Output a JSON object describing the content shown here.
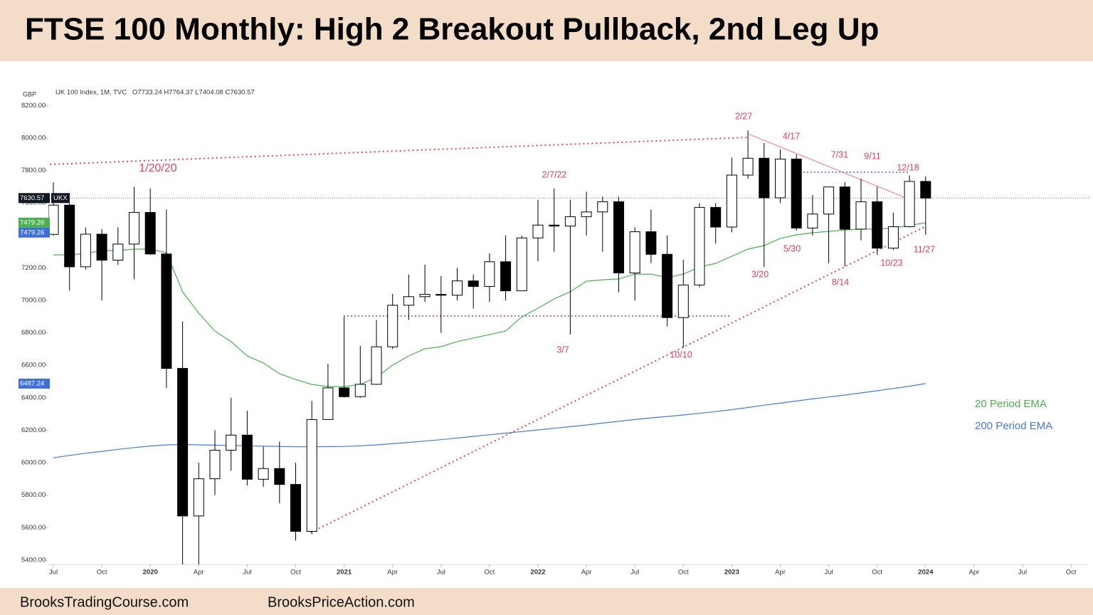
{
  "header": {
    "title": "FTSE 100 Monthly: High 2 Breakout Pullback, 2nd Leg Up"
  },
  "chart_data": {
    "type": "candlestick",
    "currency": "GBP",
    "symbol_info": "UK 100 Index, 1M, TVC",
    "ohlc_info": "O7733.24 H7764.37 L7404.08 C7630.57",
    "categories": [
      "Jul",
      null,
      null,
      "Oct",
      null,
      null,
      "2020",
      null,
      null,
      "Apr",
      null,
      null,
      "Jul",
      null,
      null,
      "Oct",
      null,
      null,
      "2021",
      null,
      null,
      "Apr",
      null,
      null,
      "Jul",
      null,
      null,
      "Oct",
      null,
      null,
      "2022",
      null,
      null,
      "Apr",
      null,
      null,
      "Jul",
      null,
      null,
      "Oct",
      null,
      null,
      "2023",
      null,
      null,
      "Apr",
      null,
      null,
      "Jul",
      null,
      null,
      "Oct",
      null,
      null,
      "2024",
      null,
      null,
      "Apr",
      null,
      null,
      "Jul",
      null,
      null,
      "Oct"
    ],
    "open": [
      7407,
      7587,
      7207,
      7408,
      7248,
      7347,
      7542,
      7286,
      6581,
      5672,
      5901,
      6077,
      6170,
      5898,
      5964,
      5866,
      5577,
      6266,
      6461,
      6407,
      6483,
      6714,
      6970,
      7023,
      7037,
      7032,
      7120,
      7086,
      7238,
      7059,
      7385,
      7464,
      7458,
      7516,
      7545,
      7608,
      7169,
      7423,
      7284,
      6894,
      7095,
      7573,
      7452,
      7772,
      7876,
      7632,
      7871,
      7446,
      7532,
      7699,
      7439,
      7608,
      7322,
      7454,
      7733.24,
      null,
      null,
      null,
      null,
      null,
      null,
      null,
      null,
      null
    ],
    "high": [
      7727,
      7600,
      7450,
      7440,
      7450,
      7700,
      7690,
      7560,
      6870,
      6000,
      6200,
      6400,
      6320,
      6100,
      6130,
      6000,
      6380,
      6610,
      6900,
      6720,
      6880,
      7040,
      7160,
      7220,
      7150,
      7200,
      7160,
      7290,
      7400,
      7400,
      7620,
      7690,
      7620,
      7670,
      7640,
      7640,
      7450,
      7560,
      7400,
      7250,
      7600,
      7600,
      7880,
      8047,
      7970,
      7930,
      7900,
      7650,
      7700,
      7730,
      7750,
      7700,
      7540,
      7770,
      7764.37,
      null,
      null,
      null,
      null,
      null,
      null,
      null,
      null,
      null
    ],
    "low": [
      7400,
      7060,
      7190,
      7000,
      7220,
      7130,
      7280,
      6460,
      4898,
      5340,
      5800,
      5950,
      5860,
      5850,
      5750,
      5520,
      5560,
      6270,
      6400,
      6400,
      6480,
      6700,
      6880,
      6990,
      6800,
      7000,
      6950,
      6990,
      7000,
      7080,
      7240,
      7300,
      6790,
      7400,
      7300,
      7050,
      7000,
      7230,
      6840,
      6710,
      7080,
      7350,
      7420,
      7750,
      7206,
      7600,
      7430,
      7400,
      7230,
      7210,
      7370,
      7280,
      7310,
      7450,
      7404.08,
      null,
      null,
      null,
      null,
      null,
      null,
      null,
      null,
      null
    ],
    "close": [
      7587,
      7207,
      7408,
      7248,
      7347,
      7542,
      7286,
      6581,
      5672,
      5901,
      6077,
      6170,
      5898,
      5964,
      5866,
      5577,
      6266,
      6461,
      6407,
      6483,
      6714,
      6970,
      7023,
      7037,
      7032,
      7120,
      7086,
      7238,
      7059,
      7385,
      7464,
      7458,
      7516,
      7545,
      7608,
      7169,
      7423,
      7284,
      6894,
      7095,
      7573,
      7452,
      7772,
      7876,
      7632,
      7871,
      7446,
      7532,
      7699,
      7439,
      7608,
      7322,
      7454,
      7733,
      7630.57,
      null,
      null,
      null,
      null,
      null,
      null,
      null,
      null,
      null
    ],
    "up_color": "#ffffff",
    "down_color": "#000000",
    "series": [
      {
        "name": "20 Period EMA",
        "color": "#4caf50",
        "values": [
          7281,
          7281,
          7289,
          7307,
          7307,
          7316,
          7316,
          7294,
          7053,
          6921,
          6811,
          6746,
          6658,
          6614,
          6548,
          6513,
          6482,
          6469,
          6469,
          6482,
          6526,
          6601,
          6658,
          6702,
          6715,
          6746,
          6768,
          6789,
          6811,
          6899,
          6952,
          7009,
          7053,
          7118,
          7127,
          7132,
          7162,
          7162,
          7140,
          7162,
          7206,
          7228,
          7272,
          7316,
          7338,
          7382,
          7404,
          7417,
          7425,
          7434,
          7439,
          7439,
          7447,
          7461,
          7479.26,
          null,
          null,
          null,
          null,
          null,
          null,
          null,
          null,
          null
        ]
      },
      {
        "name": "200 Period EMA",
        "color": "#4a78d8",
        "values": [
          6030,
          6045,
          6058,
          6070,
          6082,
          6093,
          6103,
          6110,
          6112,
          6110,
          6108,
          6106,
          6104,
          6102,
          6100,
          6098,
          6098,
          6099,
          6100,
          6104,
          6110,
          6117,
          6125,
          6133,
          6142,
          6152,
          6162,
          6172,
          6182,
          6192,
          6202,
          6212,
          6222,
          6232,
          6244,
          6255,
          6266,
          6276,
          6285,
          6294,
          6304,
          6315,
          6327,
          6340,
          6354,
          6367,
          6380,
          6393,
          6405,
          6417,
          6430,
          6443,
          6457,
          6471,
          6487.24,
          null,
          null,
          null,
          null,
          null,
          null,
          null,
          null,
          null
        ]
      }
    ],
    "ylim": [
      5373,
      8215
    ],
    "yticks": [
      {
        "value": 5400,
        "label": "5400.00"
      },
      {
        "value": 5600,
        "label": "5600.00"
      },
      {
        "value": 5800,
        "label": "5800.00"
      },
      {
        "value": 6000,
        "label": "6000.00"
      },
      {
        "value": 6200,
        "label": "6200.00"
      },
      {
        "value": 6400,
        "label": "6400.00"
      },
      {
        "value": 6600,
        "label": "6600.00"
      },
      {
        "value": 6800,
        "label": "6800.00"
      },
      {
        "value": 7000,
        "label": "7000.00"
      },
      {
        "value": 7200,
        "label": "7200.00"
      },
      {
        "value": 7400,
        "label": "7400.00"
      },
      {
        "value": 7600,
        "label": "7600.00"
      },
      {
        "value": 7800,
        "label": "7800.00"
      },
      {
        "value": 8000,
        "label": "8000.00"
      },
      {
        "value": 8200,
        "label": "8200.00"
      }
    ],
    "last_price": {
      "value": 7630.57,
      "symbol": "UKX"
    },
    "price_labels": [
      {
        "value": 7479.26,
        "color": "#4caf50"
      },
      {
        "value": 7479.26,
        "color": "#3d6fd8"
      },
      {
        "value": 6487.24,
        "color": "#3d6fd8"
      }
    ],
    "annotations": [
      "1/20/20",
      "2/7/22",
      "3/7",
      "10/10",
      "2/27",
      "4/17",
      "3/20",
      "5/30",
      "7/31",
      "9/11",
      "8/14",
      "12/18",
      "10/23",
      "11/27"
    ]
  },
  "footer": [
    "BrooksTradingCourse.com",
    "BrooksPriceAction.com"
  ]
}
